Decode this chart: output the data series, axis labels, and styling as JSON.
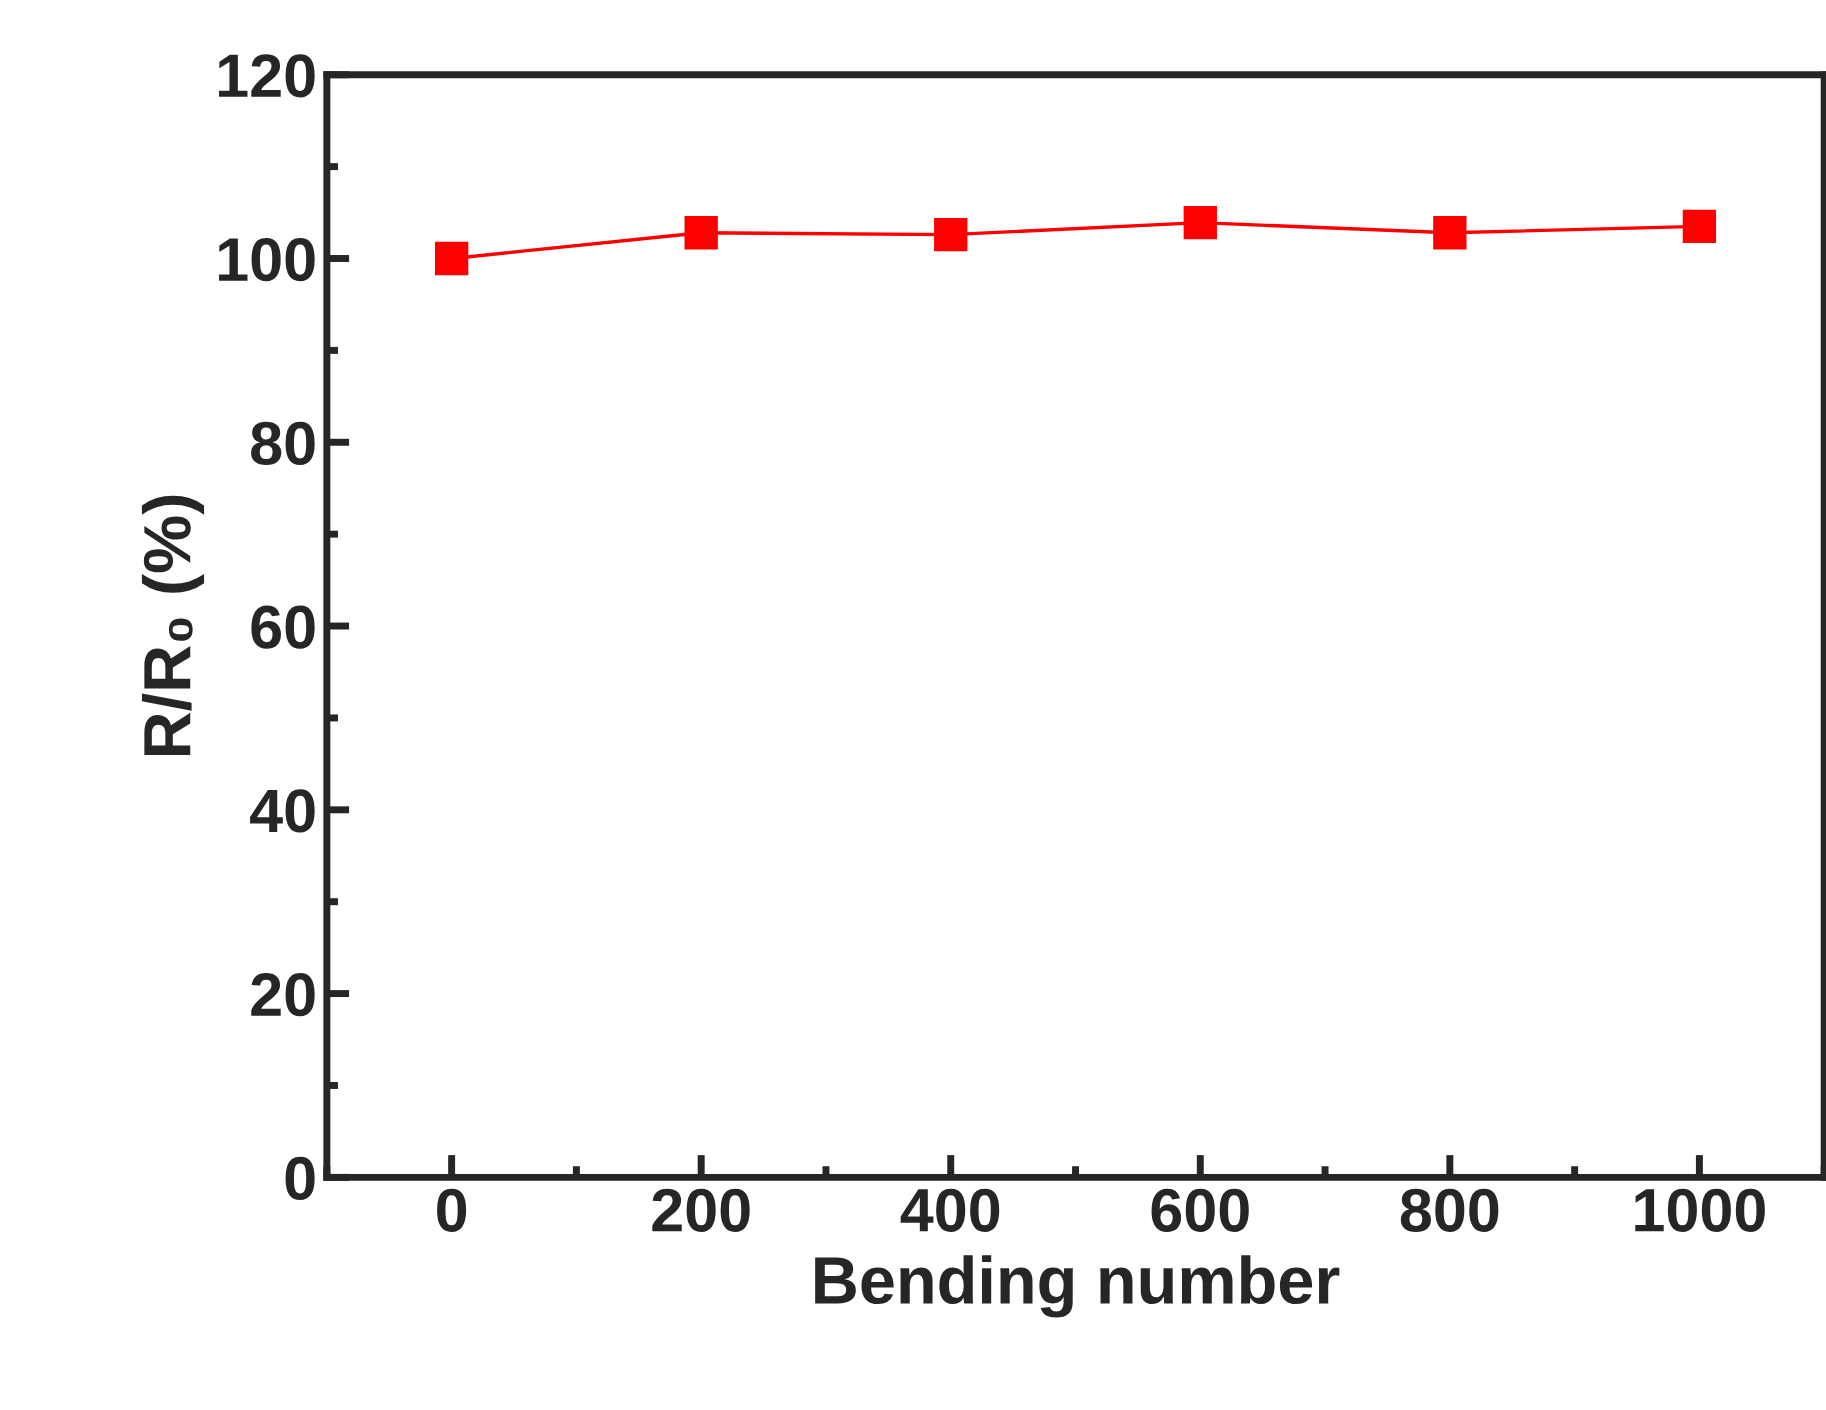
{
  "chart_data": {
    "type": "line",
    "xlabel": "Bending number",
    "ylabel": "R/R₀ (%)",
    "x": [
      0,
      200,
      400,
      600,
      800,
      1000
    ],
    "series": [
      {
        "color": "#ff0000",
        "values": [
          100,
          102.8,
          102.6,
          103.9,
          102.8,
          103.5
        ]
      }
    ],
    "xlim": [
      -100,
      1100
    ],
    "xticks": [
      0,
      200,
      400,
      600,
      800,
      1000
    ],
    "ylim": [
      0,
      120
    ],
    "yticks": [
      0,
      20,
      40,
      60,
      80,
      100,
      120
    ],
    "marker": "square",
    "line_style": "solid",
    "grid": false,
    "legend": false
  }
}
